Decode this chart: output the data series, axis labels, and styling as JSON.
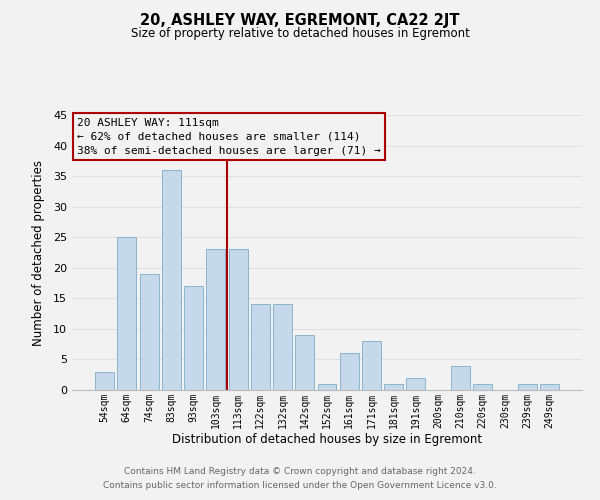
{
  "title": "20, ASHLEY WAY, EGREMONT, CA22 2JT",
  "subtitle": "Size of property relative to detached houses in Egremont",
  "xlabel": "Distribution of detached houses by size in Egremont",
  "ylabel": "Number of detached properties",
  "bar_labels": [
    "54sqm",
    "64sqm",
    "74sqm",
    "83sqm",
    "93sqm",
    "103sqm",
    "113sqm",
    "122sqm",
    "132sqm",
    "142sqm",
    "152sqm",
    "161sqm",
    "171sqm",
    "181sqm",
    "191sqm",
    "200sqm",
    "210sqm",
    "220sqm",
    "230sqm",
    "239sqm",
    "249sqm"
  ],
  "bar_values": [
    3,
    25,
    19,
    36,
    17,
    23,
    23,
    14,
    14,
    9,
    1,
    6,
    8,
    1,
    2,
    0,
    4,
    1,
    0,
    1,
    1
  ],
  "bar_color": "#c5d9ea",
  "bar_edge_color": "#8ab4d0",
  "annotation_title": "20 ASHLEY WAY: 111sqm",
  "annotation_line1": "← 62% of detached houses are smaller (114)",
  "annotation_line2": "38% of semi-detached houses are larger (71) →",
  "ref_line_index": 6,
  "ref_line_color": "#aa0000",
  "ylim": [
    0,
    45
  ],
  "yticks": [
    0,
    5,
    10,
    15,
    20,
    25,
    30,
    35,
    40,
    45
  ],
  "grid_color": "#e0e0e0",
  "background_color": "#f2f2f2",
  "footer_line1": "Contains HM Land Registry data © Crown copyright and database right 2024.",
  "footer_line2": "Contains public sector information licensed under the Open Government Licence v3.0."
}
